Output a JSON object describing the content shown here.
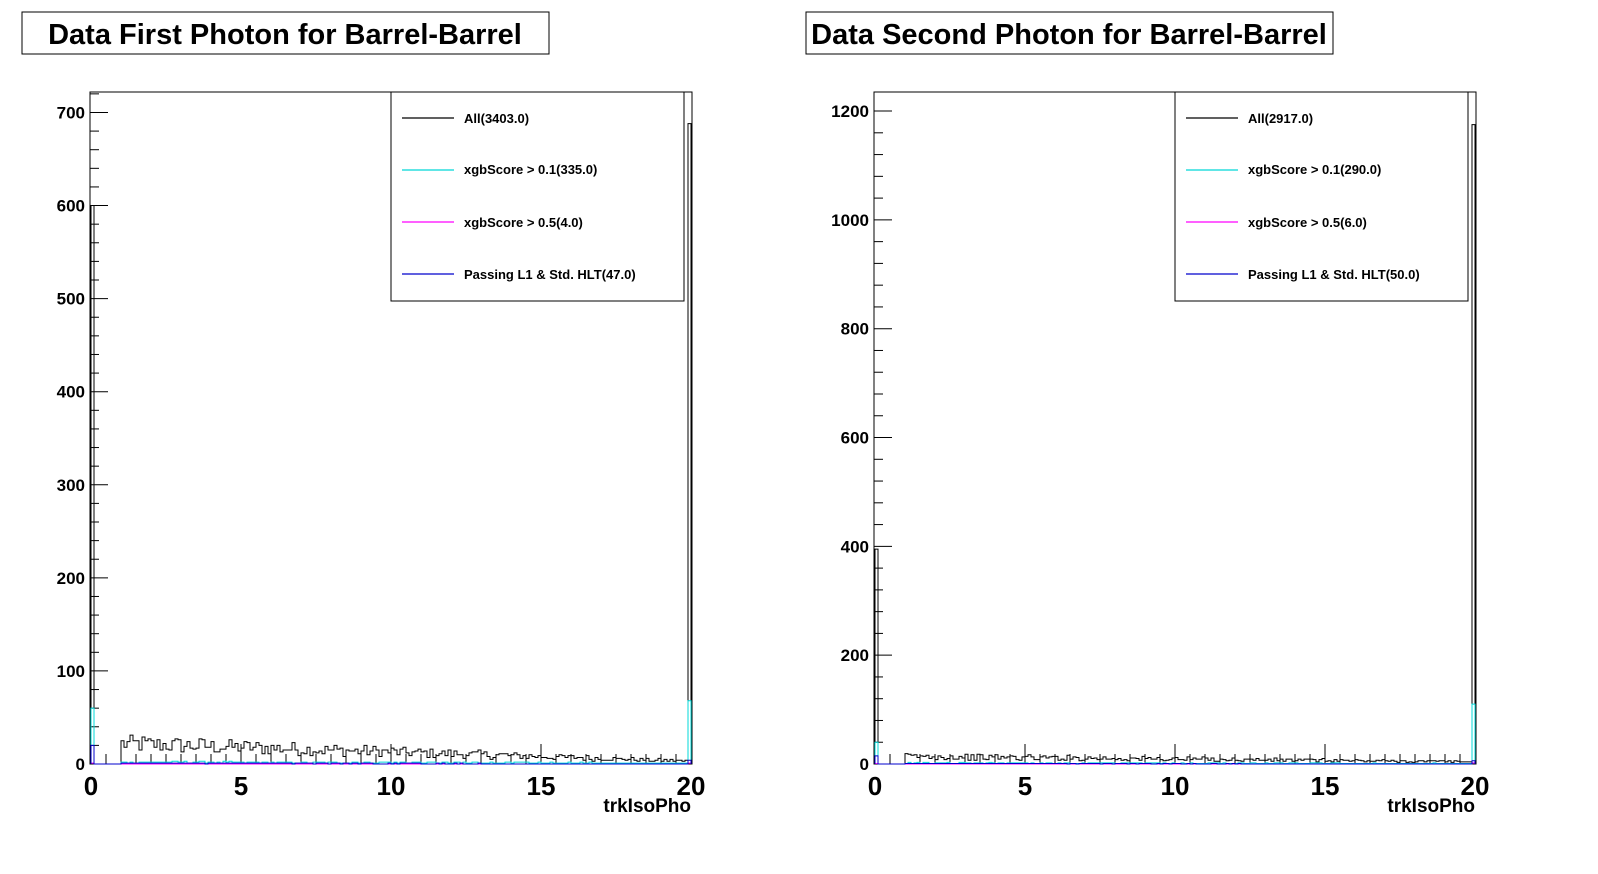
{
  "colors": {
    "all": "#000000",
    "xgb01": "#00d8d8",
    "xgb05": "#ff00ff",
    "hlt": "#0000cc"
  },
  "chart_data": [
    {
      "type": "histogram",
      "title": "Data First Photon for Barrel-Barrel",
      "xlabel": "trkIsoPho",
      "xlim": [
        0,
        20
      ],
      "ylim": [
        0,
        722
      ],
      "x_ticks": [
        "0",
        "5",
        "10",
        "15",
        "20"
      ],
      "y_ticks": [
        "0",
        "100",
        "200",
        "300",
        "400",
        "500",
        "600",
        "700"
      ],
      "y_tick_values": [
        0,
        100,
        200,
        300,
        400,
        500,
        600,
        700
      ],
      "legend": [
        "All(3403.0)",
        "xgbScore > 0.1(335.0)",
        "xgbScore > 0.5(4.0)",
        "Passing L1 & Std. HLT(47.0)"
      ],
      "series": [
        {
          "name": "All(3403.0)",
          "spike_low": 600,
          "spike_high": 688,
          "baseline_start": 22,
          "baseline_end": 3
        },
        {
          "name": "xgbScore > 0.1(335.0)",
          "spike_low": 60,
          "spike_high": 68,
          "baseline_start": 2,
          "baseline_end": 1
        },
        {
          "name": "xgbScore > 0.5(4.0)",
          "spike_low": 1,
          "spike_high": 1,
          "baseline_start": 0,
          "baseline_end": 0
        },
        {
          "name": "Passing L1 & Std. HLT(47.0)",
          "spike_low": 20,
          "spike_high": 4,
          "baseline_start": 1,
          "baseline_end": 0
        }
      ]
    },
    {
      "type": "histogram",
      "title": "Data Second Photon for Barrel-Barrel",
      "xlabel": "trkIsoPho",
      "xlim": [
        0,
        20
      ],
      "ylim": [
        0,
        1235
      ],
      "x_ticks": [
        "0",
        "5",
        "10",
        "15",
        "20"
      ],
      "y_ticks": [
        "0",
        "200",
        "400",
        "600",
        "800",
        "1000",
        "1200"
      ],
      "y_tick_values": [
        0,
        200,
        400,
        600,
        800,
        1000,
        1200
      ],
      "legend": [
        "All(2917.0)",
        "xgbScore > 0.1(290.0)",
        "xgbScore > 0.5(6.0)",
        "Passing L1 & Std. HLT(50.0)"
      ],
      "series": [
        {
          "name": "All(2917.0)",
          "spike_low": 395,
          "spike_high": 1175,
          "baseline_start": 14,
          "baseline_end": 4
        },
        {
          "name": "xgbScore > 0.1(290.0)",
          "spike_low": 40,
          "spike_high": 110,
          "baseline_start": 2,
          "baseline_end": 1
        },
        {
          "name": "xgbScore > 0.5(6.0)",
          "spike_low": 1,
          "spike_high": 2,
          "baseline_start": 0,
          "baseline_end": 0
        },
        {
          "name": "Passing L1 & Std. HLT(50.0)",
          "spike_low": 15,
          "spike_high": 6,
          "baseline_start": 1,
          "baseline_end": 0
        }
      ]
    }
  ]
}
